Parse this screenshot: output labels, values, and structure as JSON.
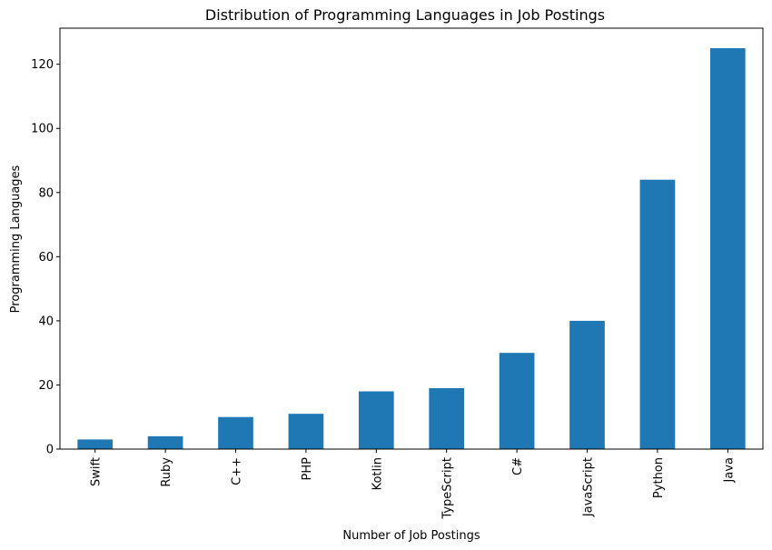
{
  "chart_data": {
    "type": "bar",
    "title": "Distribution of Programming Languages in Job Postings",
    "xlabel": "Number of Job Postings",
    "ylabel": "Programming Languages",
    "categories": [
      "Swift",
      "Ruby",
      "C++",
      "PHP",
      "Kotlin",
      "TypeScript",
      "C#",
      "JavaScript",
      "Python",
      "Java"
    ],
    "values": [
      3,
      4,
      10,
      11,
      18,
      19,
      30,
      40,
      84,
      125
    ],
    "ylim": [
      0,
      131.25
    ],
    "yticks": [
      0,
      20,
      40,
      60,
      80,
      100,
      120
    ],
    "ytick_labels": [
      "0",
      "20",
      "40",
      "60",
      "80",
      "100",
      "120"
    ],
    "bar_color": "#1f77b4",
    "grid": false,
    "legend": "none"
  }
}
